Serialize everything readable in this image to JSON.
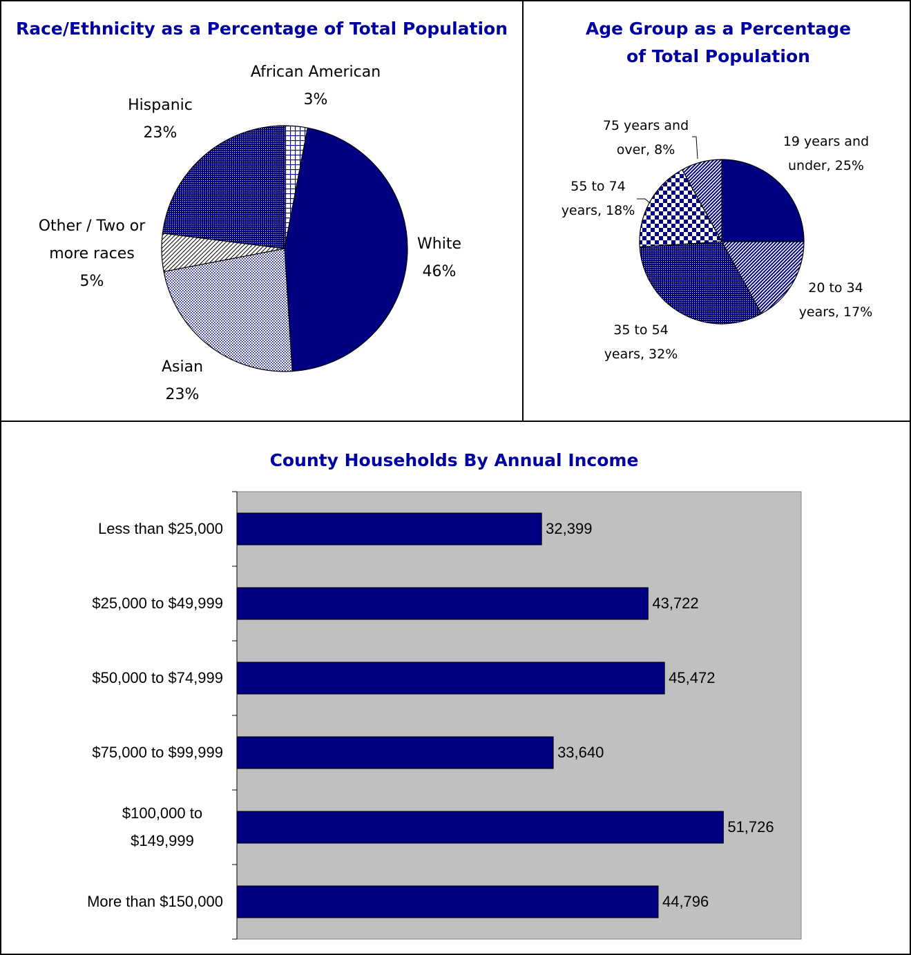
{
  "chart_data": [
    {
      "type": "pie",
      "title": "Race/Ethnicity as a Percentage of Total Population",
      "categories": [
        "African American",
        "White",
        "Asian",
        "Other / Two or more races",
        "Hispanic"
      ],
      "values": [
        3,
        46,
        23,
        5,
        23
      ],
      "value_labels": [
        "3%",
        "46%",
        "23%",
        "5%",
        "23%"
      ],
      "color": "#000080",
      "patterns": [
        "grid",
        "solid",
        "dots",
        "hatch",
        "dense-dots"
      ]
    },
    {
      "type": "pie",
      "title": "Age Group as a Percentage of Total Population",
      "values": [
        25,
        17,
        32,
        18,
        8
      ],
      "value_labels": [
        "19 years and under, 25%",
        "20 to 34 years, 17%",
        "35 to 54 years, 32%",
        "55 to 74 years, 18%",
        "75 years and over, 8%"
      ],
      "color": "#000080",
      "patterns": [
        "solid",
        "stripes",
        "dense-dots",
        "checker",
        "stripes"
      ]
    },
    {
      "type": "hbar",
      "title": "County Households By Annual Income",
      "categories": [
        "Less than $25,000",
        "$25,000 to $49,999",
        "$50,000 to $74,999",
        "$75,000 to $99,999",
        "$100,000 to $149,999",
        "More than $150,000"
      ],
      "values": [
        32399,
        43722,
        45472,
        33640,
        51726,
        44796
      ],
      "value_labels": [
        "32,399",
        "43,722",
        "45,472",
        "33,640",
        "51,726",
        "44,796"
      ],
      "color": "#000080",
      "plot_background": "#c0c0c0",
      "xlim": [
        0,
        60000
      ]
    }
  ]
}
